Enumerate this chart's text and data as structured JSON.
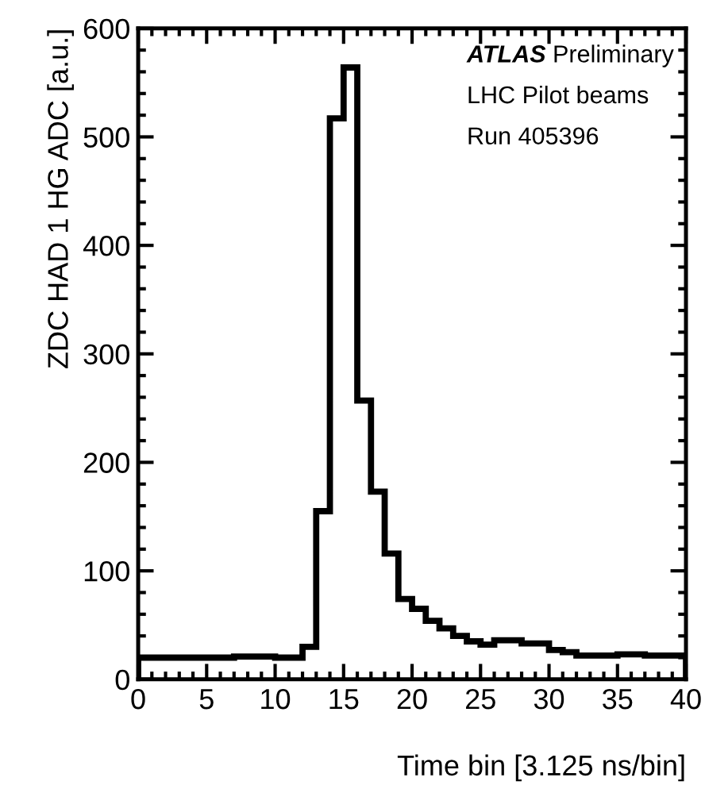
{
  "chart_data": {
    "type": "histogram",
    "xlabel": "Time bin [3.125 ns/bin]",
    "ylabel": "ZDC HAD 1 HG ADC [a.u.]",
    "annotations": [
      "ATLAS Preliminary",
      "LHC Pilot beams",
      "Run 405396"
    ],
    "bins": [
      0,
      1,
      2,
      3,
      4,
      5,
      6,
      7,
      8,
      9,
      10,
      11,
      12,
      13,
      14,
      15,
      16,
      17,
      18,
      19,
      20,
      21,
      22,
      23,
      24,
      25,
      26,
      27,
      28,
      29,
      30,
      31,
      32,
      33,
      34,
      35,
      36,
      37,
      38,
      39,
      40
    ],
    "values": [
      20,
      20,
      20,
      20,
      20,
      20,
      20,
      21,
      21,
      21,
      20,
      20,
      30,
      155,
      517,
      564,
      257,
      173,
      116,
      74,
      65,
      54,
      47,
      40,
      35,
      32,
      36,
      36,
      33,
      33,
      27,
      25,
      22,
      22,
      22,
      23,
      23,
      22,
      22,
      22
    ],
    "color": "#000000",
    "xlim": [
      0,
      40
    ],
    "ylim": [
      0,
      600
    ],
    "xticks": [
      0,
      5,
      10,
      15,
      20,
      25,
      30,
      35,
      40
    ],
    "yticks": [
      0,
      100,
      200,
      300,
      400,
      500,
      600
    ],
    "grid": false,
    "legend": false
  }
}
